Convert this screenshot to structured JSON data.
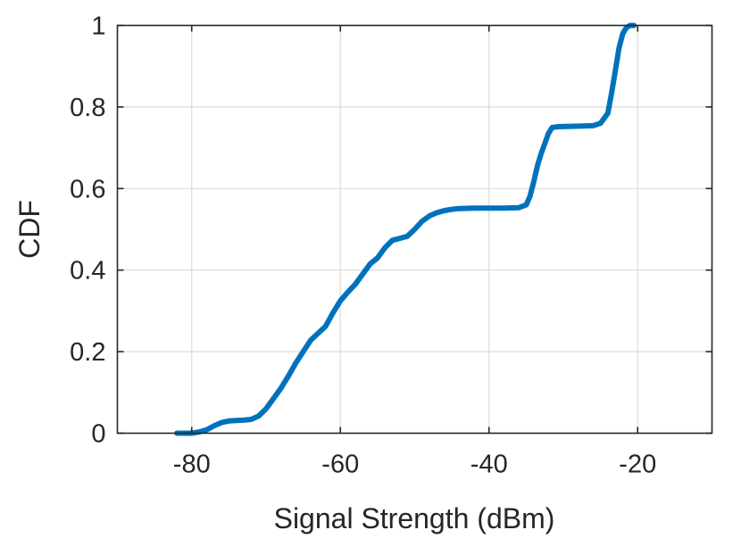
{
  "chart_data": {
    "type": "line",
    "title": "",
    "xlabel": "Signal Strength (dBm)",
    "ylabel": "CDF",
    "xlim": [
      -90,
      -10
    ],
    "ylim": [
      0,
      1
    ],
    "x_ticks": [
      -80,
      -60,
      -40,
      -20
    ],
    "x_tick_labels": [
      "-80",
      "-60",
      "-40",
      "-20"
    ],
    "y_ticks": [
      0,
      0.2,
      0.4,
      0.6,
      0.8,
      1
    ],
    "y_tick_labels": [
      "0",
      "0.2",
      "0.4",
      "0.6",
      "0.8",
      "1"
    ],
    "grid": true,
    "legend": "none",
    "series": [
      {
        "color": "#0072BD",
        "x": [
          -82,
          -80,
          -79,
          -78,
          -77,
          -76,
          -75,
          -74,
          -73,
          -72,
          -71,
          -70,
          -69,
          -68,
          -67,
          -66,
          -65,
          -64,
          -63,
          -62,
          -61,
          -60,
          -59,
          -58,
          -57,
          -56,
          -55,
          -54,
          -53,
          -52,
          -51,
          -50,
          -49,
          -48,
          -47,
          -46,
          -45,
          -44,
          -42,
          -40,
          -38,
          -36,
          -35,
          -34.5,
          -34,
          -33.5,
          -33,
          -32.5,
          -32,
          -31.5,
          -31,
          -30,
          -28,
          -26,
          -25,
          -24,
          -23.5,
          -23,
          -22.5,
          -22,
          -21.5,
          -21,
          -20.5
        ],
        "y": [
          0,
          0,
          0.003,
          0.008,
          0.018,
          0.026,
          0.03,
          0.031,
          0.032,
          0.034,
          0.042,
          0.06,
          0.085,
          0.11,
          0.14,
          0.172,
          0.2,
          0.228,
          0.245,
          0.262,
          0.295,
          0.325,
          0.346,
          0.365,
          0.39,
          0.415,
          0.43,
          0.455,
          0.473,
          0.478,
          0.483,
          0.5,
          0.52,
          0.533,
          0.541,
          0.546,
          0.549,
          0.551,
          0.552,
          0.552,
          0.552,
          0.553,
          0.56,
          0.58,
          0.615,
          0.655,
          0.685,
          0.71,
          0.735,
          0.75,
          0.751,
          0.752,
          0.753,
          0.754,
          0.76,
          0.785,
          0.835,
          0.89,
          0.945,
          0.98,
          0.995,
          1,
          1
        ]
      }
    ]
  }
}
